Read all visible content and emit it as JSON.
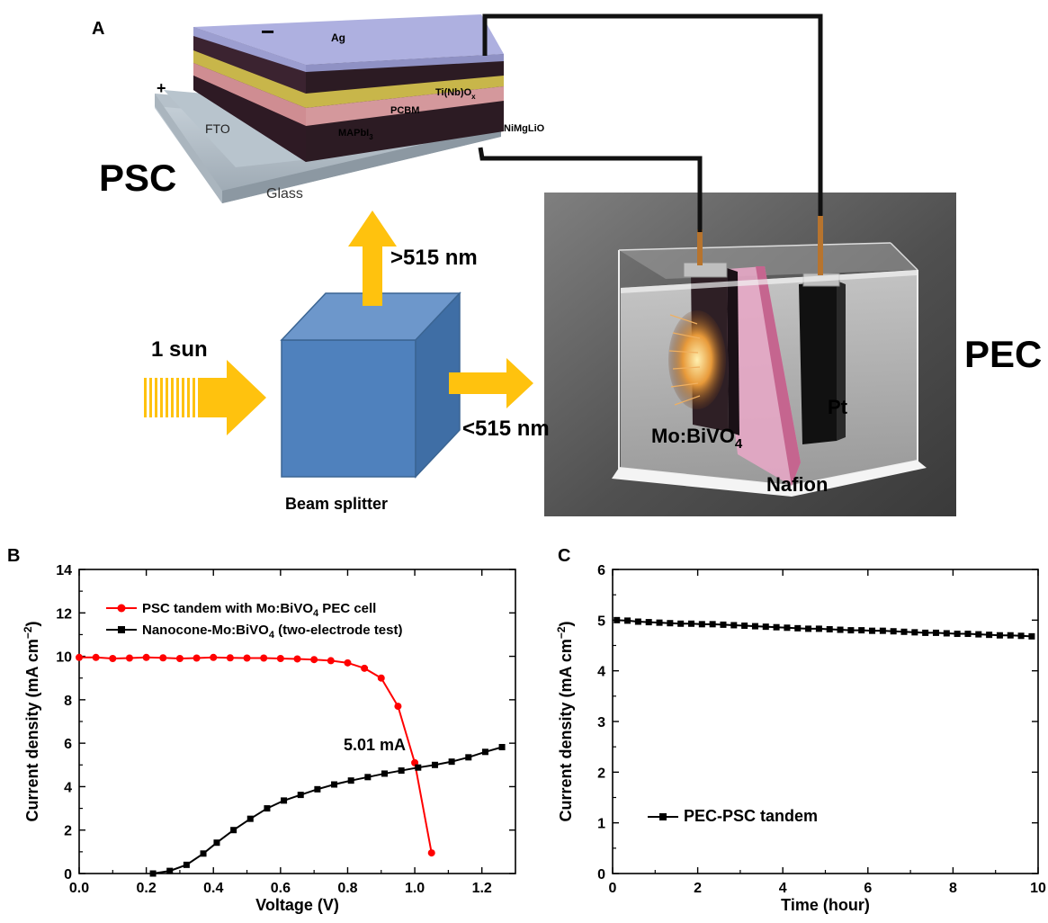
{
  "panel_a": {
    "letter": "A",
    "psc": {
      "label": "PSC",
      "minus": "−",
      "plus": "+",
      "layers": {
        "ag": "Ag",
        "tinbox_main": "Ti(Nb)O",
        "tinbox_sub": "x",
        "pcbm": "PCBM",
        "mapbi_main": "MAPbI",
        "mapbi_sub": "3",
        "fto": "FTO",
        "nimglio": "NiMgLiO",
        "glass": "Glass"
      }
    },
    "light": {
      "sun_label": "1 sun",
      "up_label": ">515 nm",
      "right_label": "<515 nm",
      "splitter_label": "Beam splitter"
    },
    "pec": {
      "label": "PEC",
      "pt": "Pt",
      "mobivo_main": "Mo:BiVO",
      "mobivo_sub": "4",
      "nafion": "Nafion"
    },
    "colors": {
      "arrow": "#ffc20e",
      "cube": "#4f81bd",
      "ag": "#aeb0e0"
    }
  },
  "panel_b": {
    "letter": "B",
    "chart_data": {
      "type": "line",
      "xlabel": "Voltage (V)",
      "ylabel": "Current density (mA cm",
      "ylabel_sup": "−2",
      "ylabel_end": ")",
      "xlim": [
        0.0,
        1.3
      ],
      "ylim": [
        0,
        14
      ],
      "xticks": [
        "0.0",
        "0.2",
        "0.4",
        "0.6",
        "0.8",
        "1.0",
        "1.2"
      ],
      "yticks": [
        "0",
        "2",
        "4",
        "6",
        "8",
        "10",
        "12",
        "14"
      ],
      "series": [
        {
          "name": "PSC tandem with Mo:BiVO",
          "name_sub": "4",
          "name_end": " PEC cell",
          "color": "#ff0000",
          "marker": "circle",
          "x": [
            0.0,
            0.05,
            0.1,
            0.15,
            0.2,
            0.25,
            0.3,
            0.35,
            0.4,
            0.45,
            0.5,
            0.55,
            0.6,
            0.65,
            0.7,
            0.75,
            0.8,
            0.85,
            0.9,
            0.95,
            1.0,
            1.05
          ],
          "y": [
            9.95,
            9.95,
            9.9,
            9.92,
            9.95,
            9.93,
            9.9,
            9.92,
            9.95,
            9.93,
            9.92,
            9.92,
            9.9,
            9.88,
            9.85,
            9.8,
            9.7,
            9.45,
            9.0,
            7.7,
            5.1,
            0.95
          ]
        },
        {
          "name": "Nanocone-Mo:BiVO",
          "name_sub": "4",
          "name_end": " (two-electrode test)",
          "color": "#000000",
          "marker": "square",
          "x": [
            0.22,
            0.27,
            0.32,
            0.37,
            0.41,
            0.46,
            0.51,
            0.56,
            0.61,
            0.66,
            0.71,
            0.76,
            0.81,
            0.86,
            0.91,
            0.96,
            1.01,
            1.06,
            1.11,
            1.16,
            1.21,
            1.26
          ],
          "y": [
            0.0,
            0.12,
            0.4,
            0.92,
            1.42,
            2.0,
            2.52,
            3.0,
            3.36,
            3.62,
            3.88,
            4.1,
            4.28,
            4.44,
            4.6,
            4.74,
            4.88,
            5.0,
            5.15,
            5.35,
            5.6,
            5.82
          ]
        }
      ],
      "annotation": {
        "text": "5.01 mA",
        "x": 1.0,
        "y": 5.01
      },
      "legend": "top-left"
    }
  },
  "panel_c": {
    "letter": "C",
    "chart_data": {
      "type": "line",
      "xlabel": "Time (hour)",
      "ylabel": "Current density (mA cm",
      "ylabel_sup": "−2",
      "ylabel_end": ")",
      "xlim": [
        0,
        10
      ],
      "ylim": [
        0,
        6
      ],
      "xticks": [
        "0",
        "2",
        "4",
        "6",
        "8",
        "10"
      ],
      "yticks": [
        "0",
        "1",
        "2",
        "3",
        "4",
        "5",
        "6"
      ],
      "series": [
        {
          "name": "PEC-PSC tandem",
          "color": "#000000",
          "marker": "square",
          "x": [
            0.1,
            0.35,
            0.6,
            0.85,
            1.1,
            1.35,
            1.6,
            1.85,
            2.1,
            2.35,
            2.6,
            2.85,
            3.1,
            3.35,
            3.6,
            3.85,
            4.1,
            4.35,
            4.6,
            4.85,
            5.1,
            5.35,
            5.6,
            5.85,
            6.1,
            6.35,
            6.6,
            6.85,
            7.1,
            7.35,
            7.6,
            7.85,
            8.1,
            8.35,
            8.6,
            8.85,
            9.1,
            9.35,
            9.6,
            9.85
          ],
          "y": [
            5.0,
            4.99,
            4.97,
            4.96,
            4.95,
            4.94,
            4.93,
            4.93,
            4.92,
            4.92,
            4.91,
            4.9,
            4.89,
            4.88,
            4.87,
            4.86,
            4.85,
            4.84,
            4.83,
            4.83,
            4.82,
            4.81,
            4.8,
            4.8,
            4.79,
            4.79,
            4.78,
            4.77,
            4.76,
            4.75,
            4.75,
            4.74,
            4.73,
            4.73,
            4.72,
            4.71,
            4.7,
            4.7,
            4.69,
            4.68
          ]
        }
      ],
      "legend": "bottom-left"
    }
  }
}
